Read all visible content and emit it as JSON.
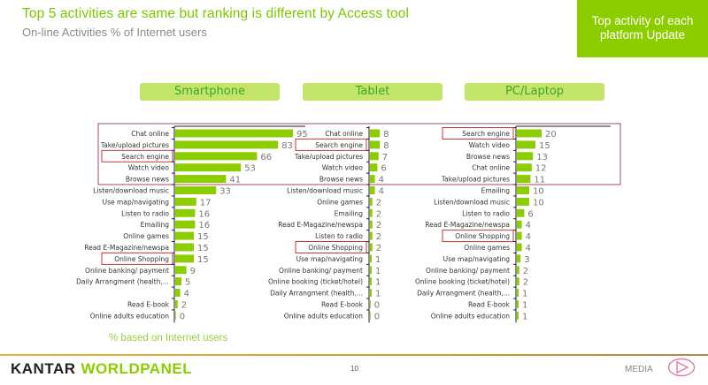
{
  "header": {
    "title": "Top 5 activities are same but ranking is different by Access tool",
    "subtitle": "On-line Activities % of Internet users",
    "callout": "Top activity of each platform Update"
  },
  "footer": {
    "note": "% based on Internet users",
    "logo_part1": "KANTAR",
    "logo_part2": "WORLDPANEL",
    "page_number": "10",
    "section": "MEDIA",
    "section_icon": "play-icon"
  },
  "colors": {
    "bar": "#8ccd00",
    "highlight_box": "#c0393b",
    "top5_box": "#a04a6a",
    "title": "#7cc800",
    "platform_header_bg": "#c2e56a"
  },
  "chart_data": [
    {
      "type": "bar",
      "orientation": "horizontal",
      "title": "Smartphone",
      "xlabel": "",
      "ylabel": "% of Internet users",
      "xlim": [
        0,
        100
      ],
      "grid": false,
      "categories": [
        "Chat online",
        "Take/upload pictures",
        "Search engine",
        "Watch video",
        "Browse news",
        "Listen/download music",
        "Use map/navigating",
        "Listen to radio",
        "Emailing",
        "Online games",
        "Read E-Magazine/newspa",
        "Online Shopping",
        "Online banking/ payment",
        "Daily Arrangment (health,...",
        "",
        "Read E-book",
        "Online adults education"
      ],
      "values": [
        95,
        83,
        66,
        53,
        41,
        33,
        17,
        16,
        16,
        15,
        15,
        15,
        9,
        5,
        4,
        2,
        0
      ],
      "highlighted": [
        "Search engine",
        "Online Shopping"
      ],
      "top5_boxed": true
    },
    {
      "type": "bar",
      "orientation": "horizontal",
      "title": "Tablet",
      "xlabel": "",
      "ylabel": "% of Internet users",
      "xlim": [
        0,
        100
      ],
      "grid": false,
      "categories": [
        "Chat online",
        "Search engine",
        "Take/upload pictures",
        "Watch video",
        "Browse news",
        "Listen/download music",
        "Online games",
        "Emailing",
        "Read E-Magazine/newspa",
        "Listen to radio",
        "Online Shopping",
        "Use map/navigating",
        "Online banking/ payment",
        "Online booking (ticket/hotel)",
        "Daily Arrangment (health,...",
        "Read E-book",
        "Online adults education"
      ],
      "values": [
        8,
        8,
        7,
        6,
        4,
        4,
        2,
        2,
        2,
        2,
        2,
        1,
        1,
        1,
        1,
        0,
        0
      ],
      "highlighted": [
        "Search engine",
        "Online Shopping"
      ],
      "top5_boxed": true
    },
    {
      "type": "bar",
      "orientation": "horizontal",
      "title": "PC/Laptop",
      "xlabel": "",
      "ylabel": "% of Internet users",
      "xlim": [
        0,
        100
      ],
      "grid": false,
      "categories": [
        "Search engine",
        "Watch video",
        "Browse news",
        "Chat online",
        "Take/upload pictures",
        "Emailing",
        "Listen/download music",
        "Listen to radio",
        "Read E-Magazine/newspa",
        "Online Shopping",
        "Online games",
        "Use map/navigating",
        "Online banking/ payment",
        "Online booking (ticket/hotel)",
        "Daily Arrangment (health,...",
        "Read E-book",
        "Online adults education"
      ],
      "values": [
        20,
        15,
        13,
        12,
        11,
        10,
        10,
        6,
        4,
        4,
        4,
        3,
        2,
        2,
        1,
        1,
        1
      ],
      "highlighted": [
        "Search engine",
        "Online Shopping"
      ],
      "top5_boxed": true
    }
  ]
}
